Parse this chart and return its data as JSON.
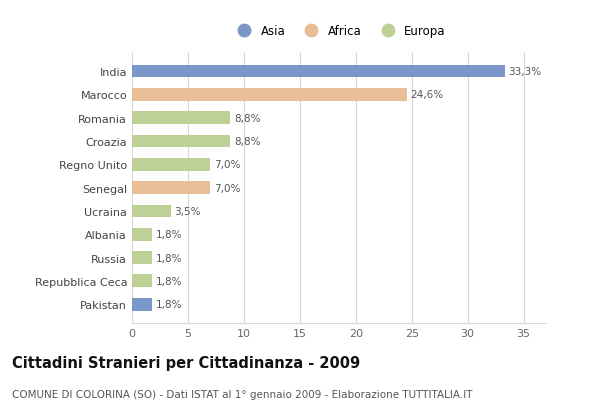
{
  "countries": [
    "India",
    "Marocco",
    "Romania",
    "Croazia",
    "Regno Unito",
    "Senegal",
    "Ucraina",
    "Albania",
    "Russia",
    "Repubblica Ceca",
    "Pakistan"
  ],
  "values": [
    33.3,
    24.6,
    8.8,
    8.8,
    7.0,
    7.0,
    3.5,
    1.8,
    1.8,
    1.8,
    1.8
  ],
  "labels": [
    "33,3%",
    "24,6%",
    "8,8%",
    "8,8%",
    "7,0%",
    "7,0%",
    "3,5%",
    "1,8%",
    "1,8%",
    "1,8%",
    "1,8%"
  ],
  "continents": [
    "Asia",
    "Africa",
    "Europa",
    "Europa",
    "Europa",
    "Africa",
    "Europa",
    "Europa",
    "Europa",
    "Europa",
    "Asia"
  ],
  "colors": {
    "Asia": "#7b96c8",
    "Africa": "#e8be96",
    "Europa": "#bdd095"
  },
  "xlim": [
    0,
    37
  ],
  "xticks": [
    0,
    5,
    10,
    15,
    20,
    25,
    30,
    35
  ],
  "title": "Cittadini Stranieri per Cittadinanza - 2009",
  "subtitle": "COMUNE DI COLORINA (SO) - Dati ISTAT al 1° gennaio 2009 - Elaborazione TUTTITALIA.IT",
  "background_color": "#ffffff",
  "grid_color": "#d8d8d8",
  "bar_height": 0.55,
  "title_fontsize": 10.5,
  "subtitle_fontsize": 7.5,
  "label_fontsize": 7.5,
  "ytick_fontsize": 8,
  "xtick_fontsize": 8,
  "legend_order": [
    "Asia",
    "Africa",
    "Europa"
  ]
}
